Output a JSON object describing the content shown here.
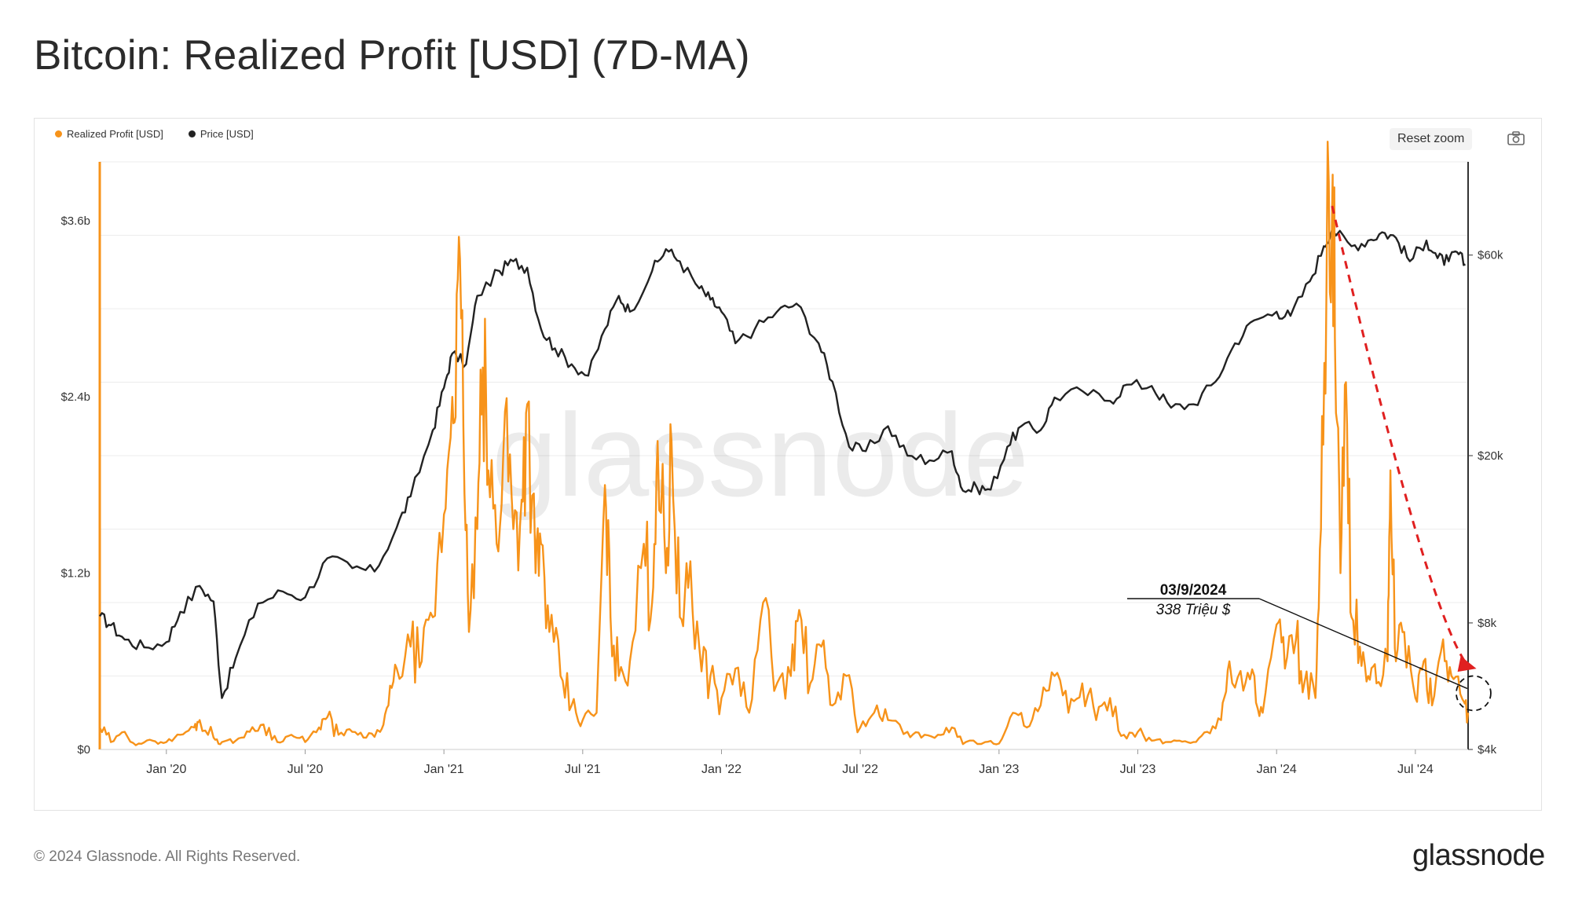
{
  "title": "Bitcoin: Realized Profit [USD] (7D-MA)",
  "toolbar": {
    "reset_zoom": "Reset zoom"
  },
  "footer": {
    "copyright": "© 2024 Glassnode. All Rights Reserved.",
    "brand": "glassnode"
  },
  "watermark": "glassnode",
  "colors": {
    "profit": "#f7931a",
    "price": "#222222",
    "arrow": "#e02020",
    "grid": "#ececec"
  },
  "chart_data": {
    "type": "line",
    "title": "Bitcoin: Realized Profit [USD] (7D-MA)",
    "legend": [
      {
        "name": "Realized Profit [USD]",
        "color": "#f7931a"
      },
      {
        "name": "Price [USD]",
        "color": "#222222"
      }
    ],
    "x_range": [
      2019.76,
      2024.69
    ],
    "x_ticks": [
      {
        "label": "Jan '20",
        "t": 2020.0
      },
      {
        "label": "Jul '20",
        "t": 2020.5
      },
      {
        "label": "Jan '21",
        "t": 2021.0
      },
      {
        "label": "Jul '21",
        "t": 2021.5
      },
      {
        "label": "Jan '22",
        "t": 2022.0
      },
      {
        "label": "Jul '22",
        "t": 2022.5
      },
      {
        "label": "Jan '23",
        "t": 2023.0
      },
      {
        "label": "Jul '23",
        "t": 2023.5
      },
      {
        "label": "Jan '24",
        "t": 2024.0
      },
      {
        "label": "Jul '24",
        "t": 2024.5
      }
    ],
    "y_left": {
      "label": "Realized Profit [USD]",
      "unit": "USD billions",
      "range": [
        0,
        4.0
      ],
      "ticks": [
        {
          "label": "$0",
          "v": 0
        },
        {
          "label": "$1.2b",
          "v": 1.2
        },
        {
          "label": "$2.4b",
          "v": 2.4
        },
        {
          "label": "$3.6b",
          "v": 3.6
        }
      ]
    },
    "y_right": {
      "label": "Price [USD]",
      "scale": "log",
      "range": [
        4000,
        100000
      ],
      "ticks": [
        {
          "label": "$4k",
          "v": 4000
        },
        {
          "label": "$8k",
          "v": 8000
        },
        {
          "label": "$20k",
          "v": 20000
        },
        {
          "label": "$60k",
          "v": 60000
        }
      ]
    },
    "series": [
      {
        "name": "Price [USD]",
        "axis": "right",
        "points": [
          [
            2019.76,
            8300
          ],
          [
            2019.8,
            7900
          ],
          [
            2019.85,
            7300
          ],
          [
            2019.92,
            7000
          ],
          [
            2020.0,
            7200
          ],
          [
            2020.05,
            8500
          ],
          [
            2020.12,
            9800
          ],
          [
            2020.17,
            9000
          ],
          [
            2020.2,
            5300
          ],
          [
            2020.25,
            6600
          ],
          [
            2020.33,
            8900
          ],
          [
            2020.42,
            9500
          ],
          [
            2020.5,
            9200
          ],
          [
            2020.58,
            11400
          ],
          [
            2020.67,
            10800
          ],
          [
            2020.75,
            10600
          ],
          [
            2020.83,
            13500
          ],
          [
            2020.88,
            16000
          ],
          [
            2020.96,
            23000
          ],
          [
            2021.0,
            29000
          ],
          [
            2021.03,
            35000
          ],
          [
            2021.08,
            33000
          ],
          [
            2021.12,
            48000
          ],
          [
            2021.2,
            55000
          ],
          [
            2021.25,
            58000
          ],
          [
            2021.3,
            56000
          ],
          [
            2021.35,
            40000
          ],
          [
            2021.4,
            36000
          ],
          [
            2021.46,
            33000
          ],
          [
            2021.52,
            31000
          ],
          [
            2021.58,
            40000
          ],
          [
            2021.63,
            48000
          ],
          [
            2021.67,
            44000
          ],
          [
            2021.75,
            55000
          ],
          [
            2021.8,
            62000
          ],
          [
            2021.85,
            58000
          ],
          [
            2021.92,
            50000
          ],
          [
            2021.96,
            47000
          ],
          [
            2022.0,
            44000
          ],
          [
            2022.05,
            37000
          ],
          [
            2022.12,
            40000
          ],
          [
            2022.2,
            44000
          ],
          [
            2022.27,
            46000
          ],
          [
            2022.35,
            37000
          ],
          [
            2022.4,
            30000
          ],
          [
            2022.46,
            21000
          ],
          [
            2022.52,
            20500
          ],
          [
            2022.6,
            23500
          ],
          [
            2022.67,
            20000
          ],
          [
            2022.75,
            19500
          ],
          [
            2022.83,
            20500
          ],
          [
            2022.87,
            16500
          ],
          [
            2022.92,
            16800
          ],
          [
            2022.97,
            16600
          ],
          [
            2023.03,
            21000
          ],
          [
            2023.08,
            23500
          ],
          [
            2023.15,
            23000
          ],
          [
            2023.2,
            27500
          ],
          [
            2023.3,
            28500
          ],
          [
            2023.4,
            27000
          ],
          [
            2023.46,
            29500
          ],
          [
            2023.55,
            29300
          ],
          [
            2023.62,
            26000
          ],
          [
            2023.7,
            26500
          ],
          [
            2023.78,
            30000
          ],
          [
            2023.85,
            37000
          ],
          [
            2023.92,
            42000
          ],
          [
            2024.0,
            44000
          ],
          [
            2024.05,
            43000
          ],
          [
            2024.12,
            52000
          ],
          [
            2024.17,
            63000
          ],
          [
            2024.2,
            69000
          ],
          [
            2024.27,
            63000
          ],
          [
            2024.33,
            65000
          ],
          [
            2024.38,
            68000
          ],
          [
            2024.43,
            66000
          ],
          [
            2024.48,
            58000
          ],
          [
            2024.54,
            65000
          ],
          [
            2024.58,
            59000
          ],
          [
            2024.62,
            58000
          ],
          [
            2024.65,
            61000
          ],
          [
            2024.68,
            57000
          ]
        ]
      },
      {
        "name": "Realized Profit [USD]",
        "axis": "left",
        "points": [
          [
            2019.76,
            0.15
          ],
          [
            2019.8,
            0.05
          ],
          [
            2019.85,
            0.12
          ],
          [
            2019.9,
            0.04
          ],
          [
            2019.95,
            0.06
          ],
          [
            2020.0,
            0.05
          ],
          [
            2020.05,
            0.1
          ],
          [
            2020.1,
            0.15
          ],
          [
            2020.12,
            0.2
          ],
          [
            2020.17,
            0.08
          ],
          [
            2020.2,
            0.05
          ],
          [
            2020.25,
            0.06
          ],
          [
            2020.3,
            0.12
          ],
          [
            2020.35,
            0.17
          ],
          [
            2020.4,
            0.05
          ],
          [
            2020.45,
            0.1
          ],
          [
            2020.5,
            0.05
          ],
          [
            2020.55,
            0.15
          ],
          [
            2020.58,
            0.22
          ],
          [
            2020.62,
            0.1
          ],
          [
            2020.67,
            0.12
          ],
          [
            2020.72,
            0.08
          ],
          [
            2020.77,
            0.12
          ],
          [
            2020.8,
            0.3
          ],
          [
            2020.83,
            0.55
          ],
          [
            2020.88,
            0.7
          ],
          [
            2020.92,
            0.6
          ],
          [
            2020.96,
            0.9
          ],
          [
            2021.0,
            1.6
          ],
          [
            2021.03,
            2.4
          ],
          [
            2021.05,
            3.2
          ],
          [
            2021.07,
            2.2
          ],
          [
            2021.09,
            0.8
          ],
          [
            2021.12,
            1.5
          ],
          [
            2021.14,
            2.6
          ],
          [
            2021.16,
            1.9
          ],
          [
            2021.19,
            1.4
          ],
          [
            2021.22,
            2.3
          ],
          [
            2021.25,
            1.5
          ],
          [
            2021.28,
            1.7
          ],
          [
            2021.3,
            2.35
          ],
          [
            2021.33,
            1.2
          ],
          [
            2021.35,
            1.4
          ],
          [
            2021.38,
            0.8
          ],
          [
            2021.42,
            0.5
          ],
          [
            2021.46,
            0.3
          ],
          [
            2021.5,
            0.2
          ],
          [
            2021.55,
            0.25
          ],
          [
            2021.58,
            1.8
          ],
          [
            2021.6,
            0.9
          ],
          [
            2021.63,
            0.5
          ],
          [
            2021.67,
            0.6
          ],
          [
            2021.72,
            1.4
          ],
          [
            2021.75,
            1.0
          ],
          [
            2021.77,
            2.1
          ],
          [
            2021.8,
            1.2
          ],
          [
            2021.82,
            2.1
          ],
          [
            2021.85,
            0.9
          ],
          [
            2021.88,
            1.1
          ],
          [
            2021.92,
            0.7
          ],
          [
            2021.96,
            0.5
          ],
          [
            2022.0,
            0.35
          ],
          [
            2022.05,
            0.55
          ],
          [
            2022.1,
            0.25
          ],
          [
            2022.15,
            1.0
          ],
          [
            2022.2,
            0.45
          ],
          [
            2022.25,
            0.5
          ],
          [
            2022.28,
            0.95
          ],
          [
            2022.32,
            0.45
          ],
          [
            2022.36,
            0.7
          ],
          [
            2022.4,
            0.3
          ],
          [
            2022.45,
            0.5
          ],
          [
            2022.5,
            0.15
          ],
          [
            2022.55,
            0.25
          ],
          [
            2022.6,
            0.2
          ],
          [
            2022.67,
            0.12
          ],
          [
            2022.72,
            0.08
          ],
          [
            2022.78,
            0.1
          ],
          [
            2022.83,
            0.15
          ],
          [
            2022.88,
            0.05
          ],
          [
            2022.95,
            0.05
          ],
          [
            2023.0,
            0.04
          ],
          [
            2023.05,
            0.25
          ],
          [
            2023.1,
            0.15
          ],
          [
            2023.15,
            0.3
          ],
          [
            2023.2,
            0.5
          ],
          [
            2023.25,
            0.25
          ],
          [
            2023.3,
            0.45
          ],
          [
            2023.35,
            0.2
          ],
          [
            2023.4,
            0.35
          ],
          [
            2023.45,
            0.1
          ],
          [
            2023.5,
            0.12
          ],
          [
            2023.55,
            0.06
          ],
          [
            2023.6,
            0.05
          ],
          [
            2023.65,
            0.06
          ],
          [
            2023.7,
            0.05
          ],
          [
            2023.75,
            0.12
          ],
          [
            2023.8,
            0.2
          ],
          [
            2023.83,
            0.6
          ],
          [
            2023.88,
            0.4
          ],
          [
            2023.92,
            0.5
          ],
          [
            2023.95,
            0.25
          ],
          [
            2024.0,
            0.85
          ],
          [
            2024.03,
            0.55
          ],
          [
            2024.07,
            0.75
          ],
          [
            2024.1,
            0.45
          ],
          [
            2024.14,
            0.35
          ],
          [
            2024.16,
            1.5
          ],
          [
            2024.18,
            3.2
          ],
          [
            2024.2,
            3.7
          ],
          [
            2024.21,
            2.8
          ],
          [
            2024.23,
            1.2
          ],
          [
            2024.25,
            2.5
          ],
          [
            2024.27,
            0.9
          ],
          [
            2024.3,
            0.7
          ],
          [
            2024.33,
            0.5
          ],
          [
            2024.36,
            0.45
          ],
          [
            2024.4,
            0.6
          ],
          [
            2024.41,
            1.9
          ],
          [
            2024.43,
            0.6
          ],
          [
            2024.46,
            0.8
          ],
          [
            2024.5,
            0.35
          ],
          [
            2024.53,
            0.6
          ],
          [
            2024.56,
            0.3
          ],
          [
            2024.6,
            0.75
          ],
          [
            2024.63,
            0.5
          ],
          [
            2024.67,
            0.34
          ],
          [
            2024.69,
            0.25
          ]
        ]
      }
    ],
    "annotations": [
      {
        "date_label": "03/9/2024",
        "value_label": "338 Triệu $",
        "t": 2024.67,
        "v": 0.34
      }
    ],
    "trend_arrow": {
      "from": [
        2024.2,
        3.7
      ],
      "to": [
        2024.72,
        0.55
      ],
      "color": "#e02020",
      "style": "dashed"
    }
  }
}
